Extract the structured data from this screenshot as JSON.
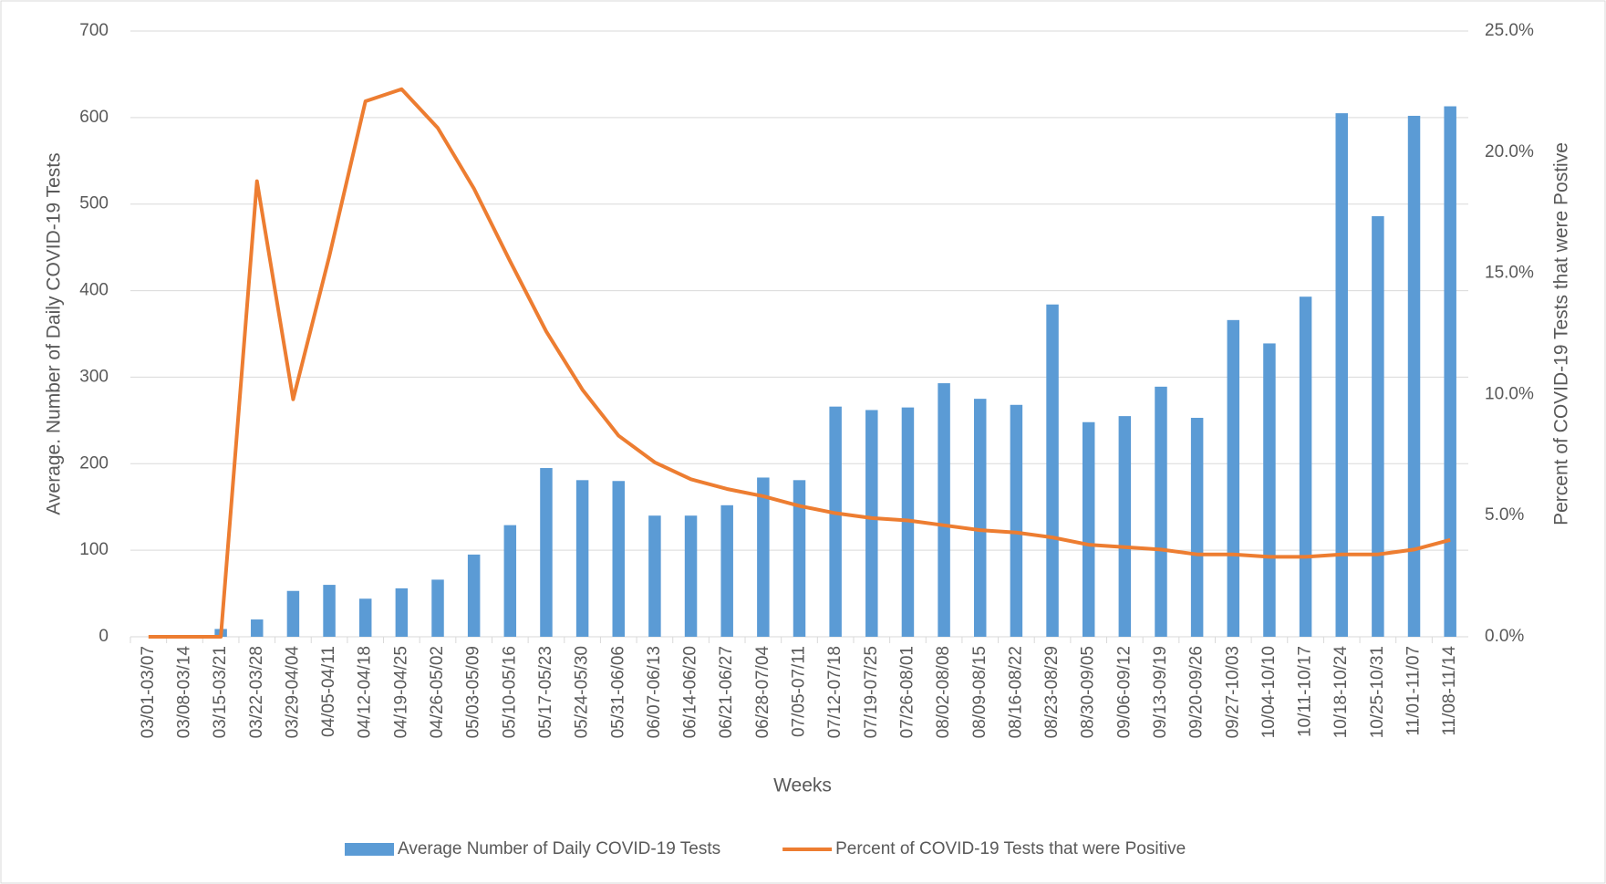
{
  "chart_data": {
    "type": "bar-line",
    "x_label": "Weeks",
    "y_label": "Average. Number of Daily COVID-19 Tests",
    "y2_label": "Percent of COVID-19 Tests that were Postive",
    "categories": [
      "03/01-03/07",
      "03/08-03/14",
      "03/15-03/21",
      "03/22-03/28",
      "03/29-04/04",
      "04/05-04/11",
      "04/12-04/18",
      "04/19-04/25",
      "04/26-05/02",
      "05/03-05/09",
      "05/10-05/16",
      "05/17-05/23",
      "05/24-05/30",
      "05/31-06/06",
      "06/07-06/13",
      "06/14-06/20",
      "06/21-06/27",
      "06/28-07/04",
      "07/05-07/11",
      "07/12-07/18",
      "07/19-07/25",
      "07/26-08/01",
      "08/02-08/08",
      "08/09-08/15",
      "08/16-08/22",
      "08/23-08/29",
      "08/30-09/05",
      "09/06-09/12",
      "09/13-09/19",
      "09/20-09/26",
      "09/27-10/03",
      "10/04-10/10",
      "10/11-10/17",
      "10/18-10/24",
      "10/25-10/31",
      "11/01-11/07",
      "11/08-11/14"
    ],
    "series": [
      {
        "name": "Average Number of Daily COVID-19 Tests",
        "type": "bar",
        "color": "#5b9bd5",
        "values": [
          0,
          0,
          9,
          20,
          53,
          60,
          44,
          56,
          66,
          95,
          129,
          195,
          181,
          180,
          140,
          140,
          152,
          184,
          181,
          266,
          262,
          265,
          293,
          275,
          268,
          384,
          248,
          255,
          289,
          253,
          366,
          339,
          393,
          605,
          486,
          602,
          613
        ]
      },
      {
        "name": "Percent of COVID-19 Tests that were Positive",
        "type": "line",
        "axis": "y2",
        "color": "#ed7d31",
        "values": [
          0,
          0,
          0,
          18.8,
          9.8,
          15.7,
          22.1,
          22.6,
          21.0,
          18.5,
          15.5,
          12.6,
          10.2,
          8.3,
          7.2,
          6.5,
          6.1,
          5.8,
          5.4,
          5.1,
          4.9,
          4.8,
          4.6,
          4.4,
          4.3,
          4.1,
          3.8,
          3.7,
          3.6,
          3.4,
          3.4,
          3.3,
          3.3,
          3.4,
          3.4,
          3.6,
          4.0
        ]
      }
    ],
    "ylim": [
      0,
      700
    ],
    "yticks": [
      0,
      100,
      200,
      300,
      400,
      500,
      600,
      700
    ],
    "y2lim": [
      0,
      25
    ],
    "y2ticks": [
      {
        "value": 0,
        "label": "0.0%"
      },
      {
        "value": 5,
        "label": "5.0%"
      },
      {
        "value": 10,
        "label": "10.0%"
      },
      {
        "value": 15,
        "label": "15.0%"
      },
      {
        "value": 20,
        "label": "20.0%"
      },
      {
        "value": 25,
        "label": "25.0%"
      }
    ],
    "grid": true,
    "legend": "bottom"
  }
}
